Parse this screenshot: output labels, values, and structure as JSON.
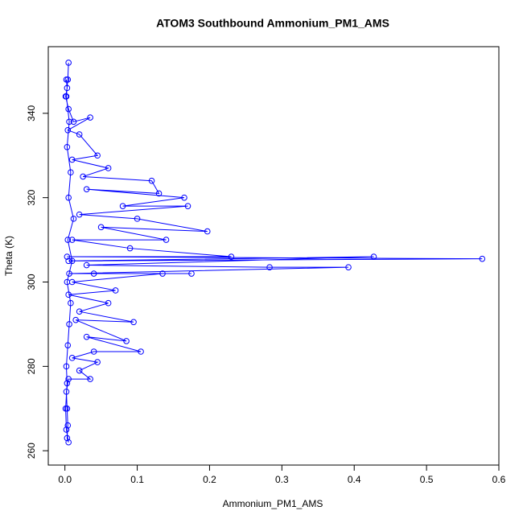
{
  "chart_data": {
    "type": "line",
    "title": "ATOM3 Southbound Ammonium_PM1_AMS",
    "x_label": "Ammonium_PM1_AMS",
    "y_label": "Theta (K)",
    "color": "#0000ff",
    "markers": true,
    "x": [
      0.002,
      0.003,
      0.001,
      0.005,
      0.012,
      0.035,
      0.004,
      0.02,
      0.045,
      0.01,
      0.06,
      0.025,
      0.12,
      0.13,
      0.03,
      0.165,
      0.08,
      0.17,
      0.02,
      0.1,
      0.197,
      0.05,
      0.14,
      0.01,
      0.09,
      0.23,
      0.003,
      0.577,
      0.005,
      0.427,
      0.03,
      0.283,
      0.392,
      0.006,
      0.175,
      0.04,
      0.135,
      0.01,
      0.07,
      0.005,
      0.06,
      0.02,
      0.095,
      0.015,
      0.085,
      0.03,
      0.105,
      0.04,
      0.01,
      0.045,
      0.02,
      0.035,
      0.005,
      0.002,
      0.003,
      0.004,
      0.003,
      0.005,
      0.002,
      0.001,
      0.003,
      0.002,
      0.004,
      0.006,
      0.008,
      0.003,
      0.01,
      0.004,
      0.012,
      0.005,
      0.008,
      0.003,
      0.006,
      0.002,
      0.004,
      0.005
    ],
    "values": [
      348,
      346,
      344,
      341,
      338,
      339,
      336,
      335,
      330,
      329,
      327,
      325,
      324,
      321,
      322,
      320,
      318,
      318,
      316,
      315,
      312,
      313,
      310,
      310,
      308,
      306,
      306,
      305.5,
      305,
      306,
      304,
      303.5,
      303.5,
      302,
      302,
      302,
      302,
      300,
      298,
      297,
      295,
      293,
      290.5,
      291,
      286,
      287,
      283.5,
      283.5,
      282,
      281,
      279,
      277,
      277,
      274,
      270,
      266,
      263,
      262,
      265,
      270,
      276,
      280,
      285,
      290,
      295,
      300,
      305,
      310,
      315,
      320,
      326,
      332,
      338,
      344,
      348,
      352
    ],
    "xlim": [
      -0.023,
      0.6
    ],
    "ylim": [
      256.6,
      355.8
    ],
    "xticks": [
      {
        "value": 0,
        "label": "0.0"
      },
      0.1,
      0.2,
      0.3,
      0.4,
      0.5,
      0.6
    ],
    "yticks": [
      260,
      280,
      300,
      320,
      340
    ]
  }
}
